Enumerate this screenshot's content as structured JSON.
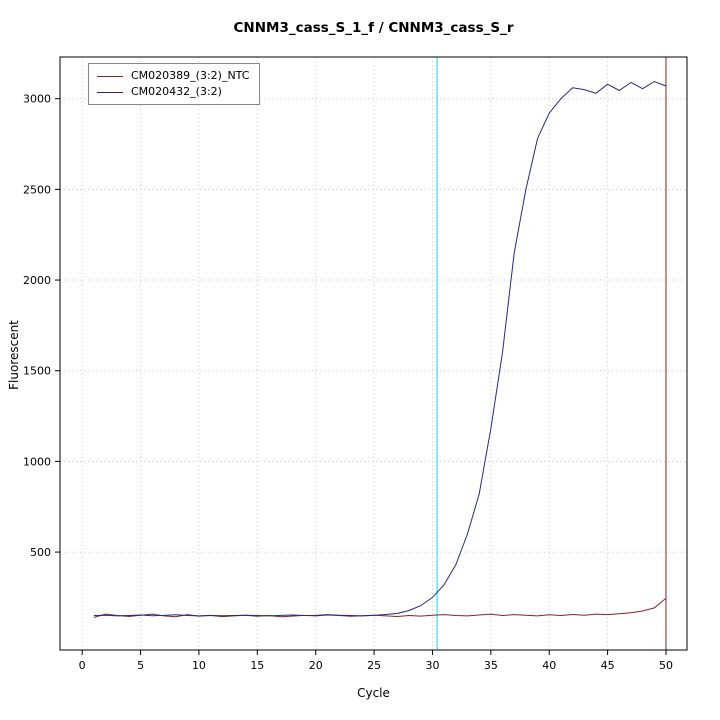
{
  "chart_data": {
    "type": "line",
    "title": "CNNM3_cass_S_1_f / CNNM3_cass_S_r",
    "xlabel": "Cycle",
    "ylabel": "Fluorescent",
    "xlim": [
      -1.9,
      51.8
    ],
    "ylim": [
      -40,
      3230
    ],
    "xticks": [
      0,
      5,
      10,
      15,
      20,
      25,
      30,
      35,
      40,
      45,
      50
    ],
    "yticks": [
      500,
      1000,
      1500,
      2000,
      2500,
      3000
    ],
    "grid": "dotted",
    "legend_position": "top-left",
    "colors": {
      "grid": "#c8c8c8",
      "axis": "#000000",
      "threshold_line": "#00e5ee",
      "end_line": "#8b2323"
    },
    "series": [
      {
        "name": "CM020389_(3:2)_NTC",
        "color": "#8b2323",
        "values": [
          140,
          158,
          150,
          145,
          152,
          158,
          148,
          143,
          155,
          147,
          150,
          144,
          148,
          152,
          146,
          150,
          143,
          147,
          151,
          148,
          153,
          150,
          146,
          149,
          152,
          148,
          145,
          150,
          147,
          152,
          155,
          150,
          148,
          153,
          158,
          150,
          155,
          152,
          148,
          154,
          150,
          156,
          152,
          158,
          155,
          160,
          165,
          175,
          192,
          245
        ]
      },
      {
        "name": "CM020432_(3:2)",
        "color": "#27278f",
        "values": [
          150,
          152,
          148,
          150,
          153,
          149,
          151,
          154,
          150,
          148,
          151,
          149,
          150,
          152,
          150,
          148,
          151,
          153,
          150,
          151,
          155,
          152,
          150,
          148,
          151,
          156,
          162,
          178,
          205,
          250,
          320,
          430,
          600,
          820,
          1180,
          1600,
          2150,
          2500,
          2780,
          2920,
          3000,
          3060,
          3050,
          3030,
          3080,
          3045,
          3090,
          3055,
          3095,
          3070
        ]
      }
    ],
    "annotations": [
      {
        "type": "vline",
        "x": 30.4,
        "color": "#00e5ee"
      },
      {
        "type": "vline",
        "x": 50,
        "color": "#8b2323"
      }
    ],
    "x_start_cycle": 1
  }
}
